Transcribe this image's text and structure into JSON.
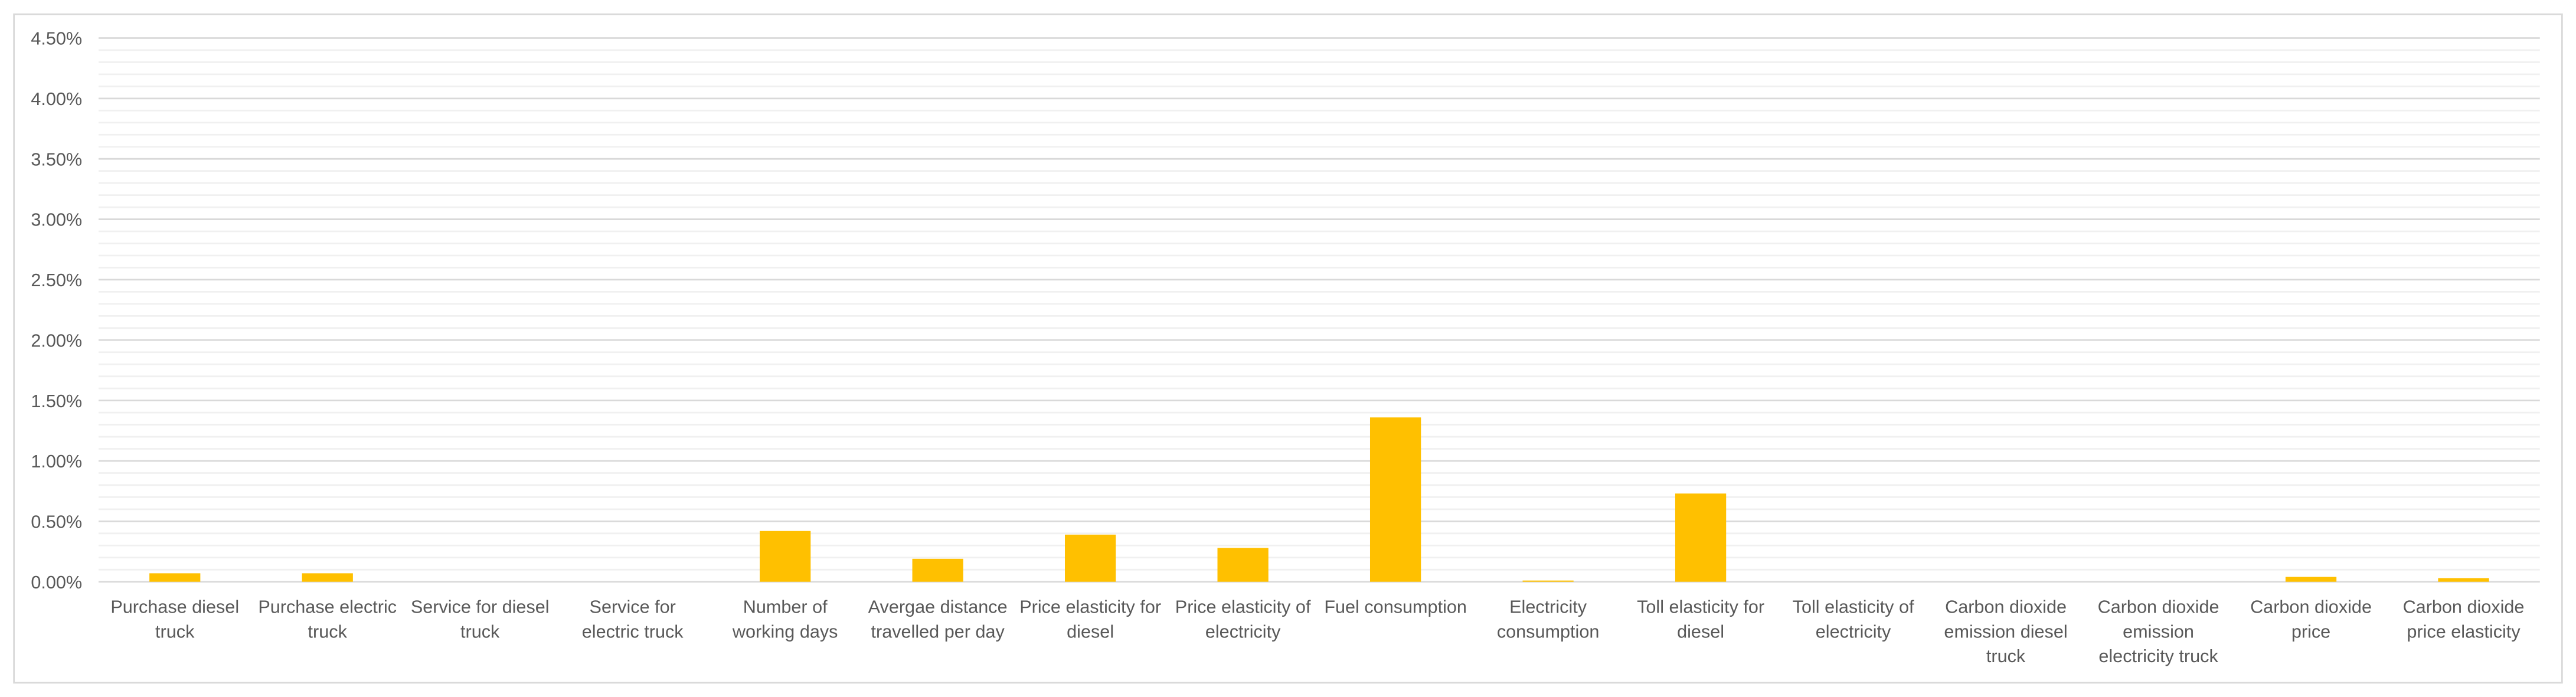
{
  "chart_data": {
    "type": "bar",
    "categories": [
      "Purchase diesel truck",
      "Purchase electric truck",
      "Service for diesel truck",
      "Service for electric truck",
      "Number of working days",
      "Avergae distance travelled per day",
      "Price elasticity for diesel",
      "Price elasticity of electricity",
      "Fuel consumption",
      "Electricity consumption",
      "Toll elasticity for diesel",
      "Toll elasticity of electricity",
      "Carbon dioxide emission diesel truck",
      "Carbon dioxide emission electricity truck",
      "Carbon dioxide price",
      "Carbon dioxide price elasticity"
    ],
    "values": [
      0.07,
      0.07,
      0,
      0,
      0.42,
      0.19,
      0.39,
      0.28,
      1.36,
      0.01,
      0.73,
      0,
      0,
      0,
      0.04,
      0.03
    ],
    "color": "#ffc000",
    "ylim": [
      0,
      4.5
    ],
    "yticks": [
      {
        "value": 0,
        "label": "0.00%"
      },
      {
        "value": 0.5,
        "label": "0.50%"
      },
      {
        "value": 1,
        "label": "1.00%"
      },
      {
        "value": 1.5,
        "label": "1.50%"
      },
      {
        "value": 2,
        "label": "2.00%"
      },
      {
        "value": 2.5,
        "label": "2.50%"
      },
      {
        "value": 3,
        "label": "3.00%"
      },
      {
        "value": 3.5,
        "label": "3.50%"
      },
      {
        "value": 4,
        "label": "4.00%"
      },
      {
        "value": 4.5,
        "label": "4.50%"
      }
    ],
    "grid": true,
    "minor_grid": true
  }
}
